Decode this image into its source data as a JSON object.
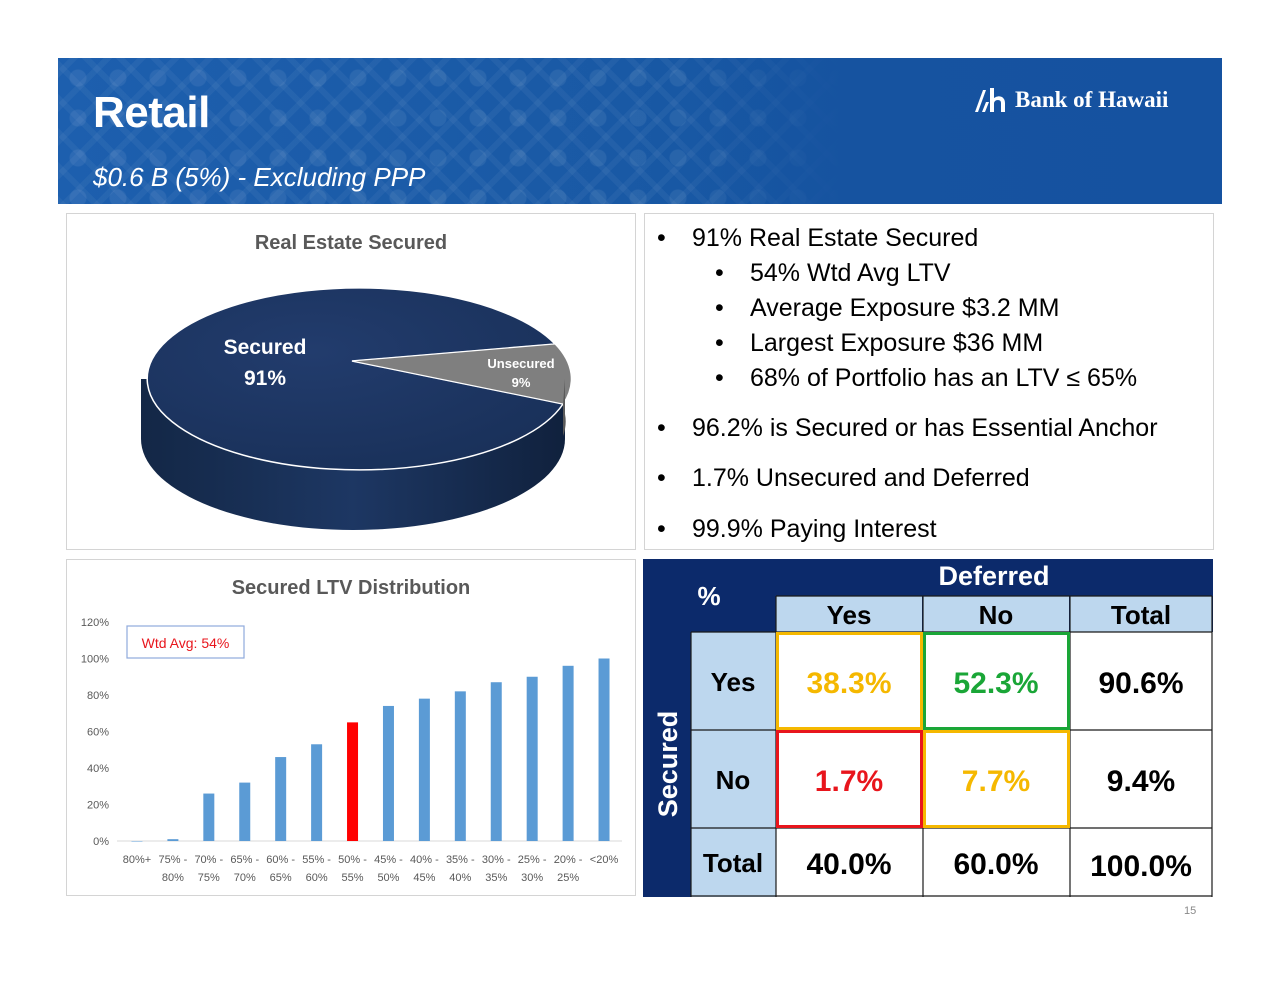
{
  "header": {
    "title": "Retail",
    "subtitle": "$0.6 B (5%) - Excluding PPP",
    "logo_text": "Bank of Hawaii",
    "logo_icon": "bank-of-hawaii-logo-icon"
  },
  "pie": {
    "title": "Real Estate Secured",
    "secured_label": "Secured",
    "secured_value": "91%",
    "unsecured_label": "Unsecured",
    "unsecured_value": "9%"
  },
  "bullets": {
    "b1": "91% Real Estate Secured",
    "b1a": "54% Wtd Avg LTV",
    "b1b": "Average Exposure $3.2 MM",
    "b1c": "Largest Exposure $36 MM",
    "b1d": "68% of Portfolio has an LTV ≤ 65%",
    "b2": "96.2% is Secured or has Essential Anchor",
    "b3": "1.7% Unsecured and Deferred",
    "b4": "99.9% Paying Interest",
    "dot": "•"
  },
  "bar": {
    "title": "Secured LTV Distribution",
    "annotation": "Wtd Avg: 54%",
    "yticks": [
      "0%",
      "20%",
      "40%",
      "60%",
      "80%",
      "100%",
      "120%"
    ],
    "xtick_top": [
      "80%+",
      "75% -",
      "70% -",
      "65% -",
      "60% -",
      "55% -",
      "50% -",
      "45% -",
      "40% -",
      "35% -",
      "30% -",
      "25% -",
      "20% -",
      "<20%"
    ],
    "xtick_bottom": [
      "",
      "80%",
      "75%",
      "70%",
      "65%",
      "60%",
      "55%",
      "50%",
      "45%",
      "40%",
      "35%",
      "30%",
      "25%",
      ""
    ]
  },
  "table": {
    "corner": "%",
    "col_group": "Deferred",
    "row_group": "Secured",
    "col_headers": [
      "Yes",
      "No",
      "Total"
    ],
    "rows": [
      {
        "label": "Yes",
        "cells": [
          "38.3%",
          "52.3%",
          "90.6%"
        ]
      },
      {
        "label": "No",
        "cells": [
          "1.7%",
          "7.7%",
          "9.4%"
        ]
      },
      {
        "label": "Total",
        "cells": [
          "40.0%",
          "60.0%",
          "100.0%"
        ]
      }
    ],
    "colors": {
      "yellow": "#f5b800",
      "green": "#1aa637",
      "red": "#e8151c",
      "navy": "#0c2a6b",
      "light_blue": "#bdd7ee"
    }
  },
  "page_number": "15",
  "chart_data": [
    {
      "type": "pie",
      "title": "Real Estate Secured",
      "categories": [
        "Secured",
        "Unsecured"
      ],
      "values": [
        91,
        9
      ],
      "colors": [
        "#1c3564",
        "#808080"
      ]
    },
    {
      "type": "bar",
      "title": "Secured LTV Distribution",
      "categories": [
        "80%+",
        "75% - 80%",
        "70% - 75%",
        "65% - 70%",
        "60% - 65%",
        "55% - 60%",
        "50% - 55%",
        "45% - 50%",
        "40% - 45%",
        "35% - 40%",
        "30% - 35%",
        "25% - 30%",
        "20% - 25%",
        "<20%"
      ],
      "values": [
        0,
        1,
        26,
        32,
        46,
        53,
        65,
        74,
        78,
        82,
        87,
        90,
        96,
        100
      ],
      "highlight_index": 6,
      "bar_color": "#5b9bd5",
      "highlight_color": "#ff0000",
      "ylim": [
        0,
        120
      ],
      "grid": false,
      "annotation": "Wtd Avg: 54%"
    },
    {
      "type": "table",
      "row_header": "Secured",
      "column_header": "Deferred",
      "columns": [
        "Yes",
        "No",
        "Total"
      ],
      "rows": [
        "Yes",
        "No",
        "Total"
      ],
      "values": [
        [
          "38.3%",
          "52.3%",
          "90.6%"
        ],
        [
          "1.7%",
          "7.7%",
          "9.4%"
        ],
        [
          "40.0%",
          "60.0%",
          "100.0%"
        ]
      ]
    }
  ]
}
